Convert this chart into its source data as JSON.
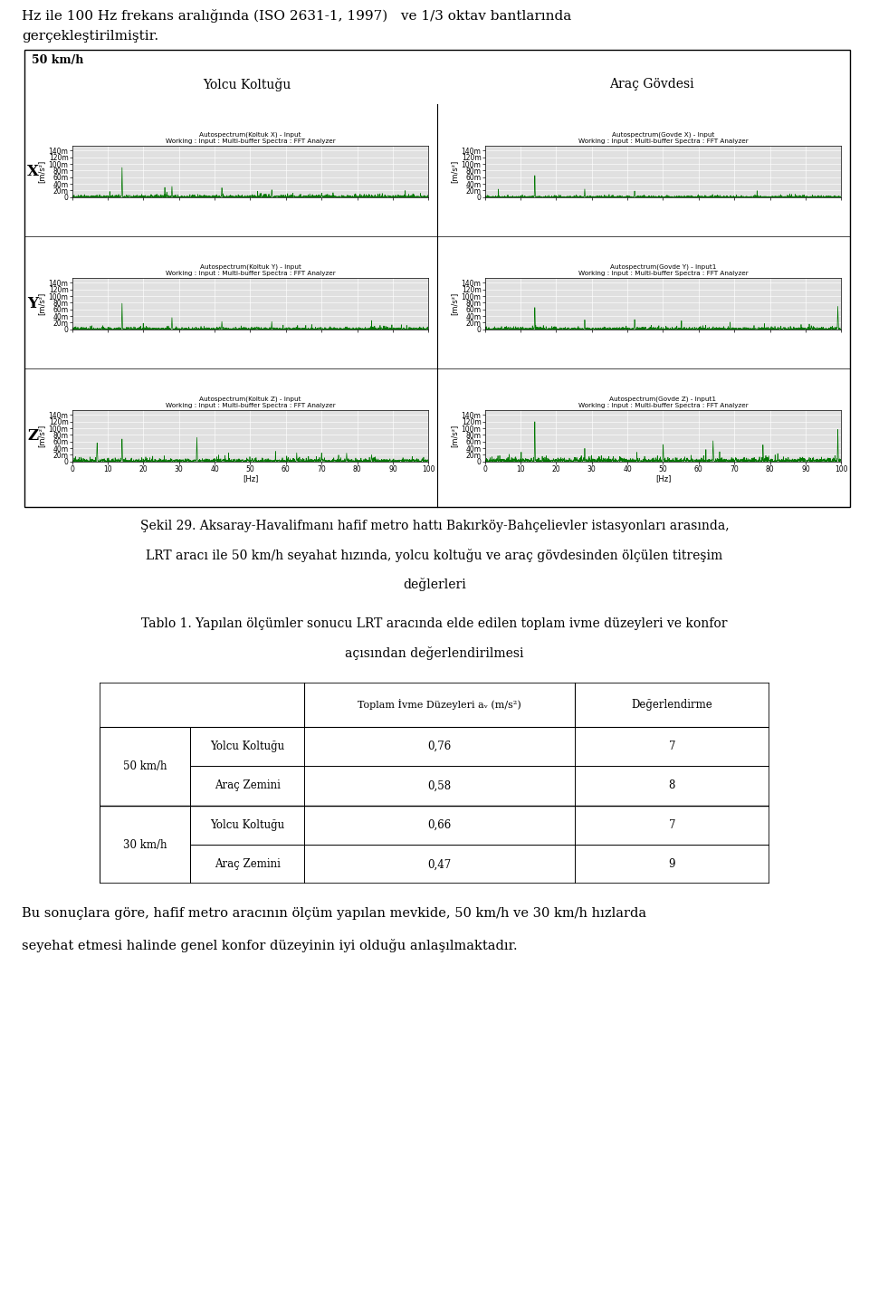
{
  "top_text_line1": "Hz ile 100 Hz frekans aralığında (ISO 2631-1, 1997)   ve 1/3 oktav bantlarında",
  "top_text_line2": "gerçekleştirilmiştir.",
  "box_label": "50 km/h",
  "col_headers": [
    "Yolcu Koltuğu",
    "Araç Gövdesi"
  ],
  "row_labels": [
    "X",
    "Y",
    "Z"
  ],
  "subplot_titles_left": [
    "Autospectrum(Koltuk X) - Input",
    "Autospectrum(Koltuk Y) - Input",
    "Autospectrum(Koltuk Z) - Input"
  ],
  "subplot_titles_right": [
    "Autospectrum(Govde X) - Input",
    "Autospectrum(Govde Y) - Input1",
    "Autospectrum(Govde Z) - Input1"
  ],
  "subtitle": "Working : Input : Multi-buffer Spectra : FFT Analyzer",
  "y_label": "[m/s²]",
  "x_label": "[Hz]",
  "x_ticks": [
    0,
    10,
    20,
    30,
    40,
    50,
    60,
    70,
    80,
    90,
    100
  ],
  "y_ticks_labels": [
    "0",
    "20m",
    "40m",
    "60m",
    "80m",
    "100m",
    "120m",
    "140m"
  ],
  "y_ticks_values": [
    0.0,
    0.02,
    0.04,
    0.06,
    0.08,
    0.1,
    0.12,
    0.14
  ],
  "y_max": 0.155,
  "line_color": "#007700",
  "bg_color": "#e0e0e0",
  "caption_line1": "Şekil 29. Aksaray-Havalifmanı hafif metro hattı Bakırköy-Bahçelievler istasyonları arasında,",
  "caption_line2": "LRT aracı ile 50 km/h seyahat hızında, yolcu koltuğu ve araç gövdesinden ölçülen titreşim",
  "caption_line3": "değlerleri",
  "table_title_line1": "Tablo 1. Yapılan ölçümler sonucu LRT aracında elde edilen toplam ivme düzeyleri ve konfor",
  "table_title_line2": "açısından değerlendirilmesi",
  "table_col_header": "Toplam İvme Düzeyleri aᵥ (m/s²)",
  "table_col2_header": "Değerlendirme",
  "table_data": [
    [
      "50 km/h",
      "Yolcu Koltuğu",
      "0,76",
      "7"
    ],
    [
      "50 km/h",
      "Araç Zemini",
      "0,58",
      "8"
    ],
    [
      "30 km/h",
      "Yolcu Koltuğu",
      "0,66",
      "7"
    ],
    [
      "30 km/h",
      "Araç Zemini",
      "0,47",
      "9"
    ]
  ],
  "bottom_text_line1": "Bu sonuçlara göre, hafif metro aracının ölçüm yapılan mevkide, 50 km/h ve 30 km/h hızlarda",
  "bottom_text_line2": "seyehat etmesi halinde genel konfor düzeyinin iyi olduğu anlaşılmaktadır."
}
